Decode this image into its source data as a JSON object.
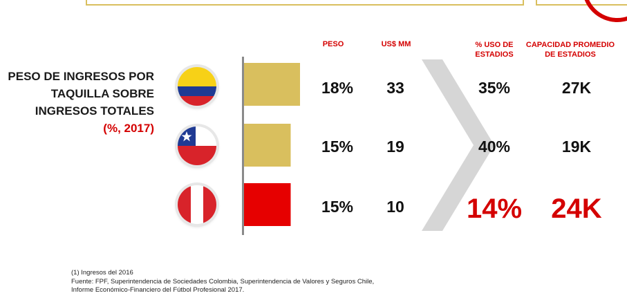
{
  "title": {
    "line1": "PESO DE INGRESOS POR",
    "line2": "TAQUILLA SOBRE",
    "line3": "INGRESOS TOTALES",
    "subtitle": "(%, 2017)"
  },
  "headers": {
    "peso": "PESO",
    "usd": "US$ MM",
    "uso_line1": "% USO DE",
    "uso_line2": "ESTADIOS",
    "cap_line1": "CAPACIDAD PROMEDIO",
    "cap_line2": "DE ESTADIOS"
  },
  "colors": {
    "gold": "#d9bf5e",
    "red": "#e60000",
    "accent": "#d40000"
  },
  "flags": [
    "colombia-flag-icon",
    "chile-flag-icon",
    "peru-flag-icon"
  ],
  "rows": [
    {
      "peso": "18%",
      "usd": "33",
      "uso": "35%",
      "cap": "27K",
      "highlight": false
    },
    {
      "peso": "15%",
      "usd": "19",
      "uso": "40%",
      "cap": "19K",
      "highlight": false
    },
    {
      "peso": "15%",
      "usd": "10",
      "uso": "14%",
      "cap": "24K",
      "highlight": true
    }
  ],
  "chart_data": {
    "type": "bar",
    "categories": [
      "",
      "",
      ""
    ],
    "values": [
      18,
      15,
      15
    ],
    "title": "PESO DE INGRESOS POR TAQUILLA SOBRE INGRESOS TOTALES (%, 2017)",
    "bar_colors": [
      "#d9bf5e",
      "#d9bf5e",
      "#e60000"
    ]
  },
  "footer": {
    "note": "(1) Ingresos del 2016",
    "source1": "Fuente: FPF, Superintendencia de Sociedades Colombia, Superintendencia de Valores y Seguros Chile,",
    "source2": "Informe Económico-Financiero del Fútbol Profesional 2017."
  }
}
